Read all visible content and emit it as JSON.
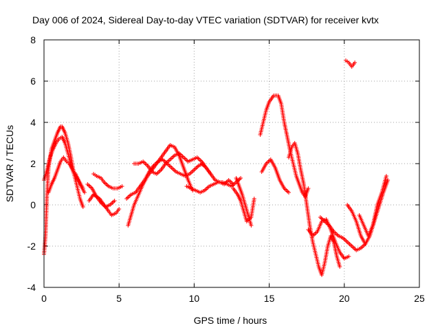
{
  "chart_data": {
    "type": "scatter",
    "title": "Day 006 of 2024, Sidereal Day-to-day VTEC variation (SDTVAR) for receiver kvtx",
    "xlabel": "GPS time / hours",
    "ylabel": "SDTVAR / TECUs",
    "xlim": [
      0,
      25
    ],
    "ylim": [
      -4,
      8
    ],
    "x_ticks": [
      0,
      5,
      10,
      15,
      20,
      25
    ],
    "y_ticks": [
      -4,
      -2,
      0,
      2,
      4,
      6,
      8
    ],
    "x_tick_labels": [
      "0",
      "5",
      "10",
      "15",
      "20",
      "25"
    ],
    "y_tick_labels": [
      "-4",
      "-2",
      "0",
      "2",
      "4",
      "6",
      "8"
    ],
    "grid": true,
    "marker": "+",
    "color": "#ff0000",
    "series": [
      {
        "name": "arc-a",
        "x": [
          0.0,
          0.1,
          0.2,
          0.3,
          0.5,
          0.7,
          0.9,
          1.1,
          1.2,
          1.4,
          1.6,
          1.8,
          2.0,
          2.2,
          2.4,
          2.6
        ],
        "y": [
          -2.4,
          -1.5,
          0.5,
          1.8,
          2.7,
          3.1,
          3.5,
          3.8,
          3.8,
          3.5,
          3.0,
          2.3,
          1.5,
          0.9,
          0.3,
          -0.1
        ]
      },
      {
        "name": "arc-b",
        "x": [
          0.0,
          0.2,
          0.4,
          0.6,
          0.8,
          1.0,
          1.2,
          1.4,
          1.6,
          1.8,
          2.0,
          2.2,
          2.4,
          2.7
        ],
        "y": [
          1.2,
          1.7,
          2.3,
          2.7,
          3.0,
          3.2,
          3.3,
          3.0,
          2.5,
          1.9,
          1.5,
          1.3,
          1.0,
          0.6
        ]
      },
      {
        "name": "arc-c",
        "x": [
          0.3,
          0.5,
          0.7,
          0.9,
          1.1,
          1.3,
          1.5,
          1.7,
          1.9,
          2.1,
          2.3,
          2.6
        ],
        "y": [
          0.6,
          1.0,
          1.3,
          1.7,
          2.1,
          2.3,
          2.1,
          2.0,
          1.7,
          1.5,
          1.2,
          0.8
        ]
      },
      {
        "name": "arc-d",
        "x": [
          3.3,
          3.5,
          3.8,
          4.0,
          4.3,
          4.6,
          4.9,
          5.2
        ],
        "y": [
          1.5,
          1.4,
          1.3,
          1.1,
          0.9,
          0.8,
          0.8,
          0.9
        ]
      },
      {
        "name": "arc-e",
        "x": [
          3.0,
          3.3,
          3.7,
          4.0,
          4.3,
          4.5,
          4.8,
          5.0
        ],
        "y": [
          0.2,
          0.5,
          0.3,
          0.0,
          -0.3,
          -0.5,
          -0.4,
          -0.2
        ]
      },
      {
        "name": "arc-f",
        "x": [
          2.9,
          3.2,
          3.5,
          3.8,
          4.1,
          4.4,
          4.7
        ],
        "y": [
          1.0,
          0.8,
          0.4,
          0.1,
          -0.1,
          0.0,
          0.2
        ]
      },
      {
        "name": "arc-g",
        "x": [
          5.6,
          5.8,
          6.0,
          6.3,
          6.6,
          6.9,
          7.2,
          7.5,
          7.8,
          8.1,
          8.4,
          8.7,
          9.0,
          9.3,
          9.6,
          9.9
        ],
        "y": [
          -1.0,
          -0.5,
          0.0,
          0.5,
          1.0,
          1.4,
          1.7,
          2.0,
          2.3,
          2.6,
          2.9,
          2.8,
          2.4,
          1.8,
          1.2,
          0.7
        ]
      },
      {
        "name": "arc-h",
        "x": [
          5.5,
          5.8,
          6.1,
          6.4,
          6.7,
          7.0,
          7.3,
          7.6,
          7.9,
          8.2,
          8.5,
          8.8,
          9.1,
          9.4,
          9.7,
          10.0,
          10.3,
          10.6
        ],
        "y": [
          0.3,
          0.5,
          0.6,
          0.9,
          1.2,
          1.6,
          1.9,
          2.1,
          2.2,
          2.0,
          1.8,
          1.6,
          1.5,
          1.4,
          1.5,
          1.7,
          1.9,
          2.0
        ]
      },
      {
        "name": "arc-i",
        "x": [
          6.0,
          6.3,
          6.6,
          6.9,
          7.2,
          7.5,
          7.8,
          8.1,
          8.4,
          8.7,
          9.0,
          9.3,
          9.6,
          9.9,
          10.2,
          10.5,
          10.8,
          11.1
        ],
        "y": [
          2.0,
          2.0,
          2.1,
          1.9,
          1.6,
          1.5,
          1.7,
          2.0,
          2.2,
          2.4,
          2.5,
          2.3,
          2.1,
          2.2,
          2.3,
          2.1,
          1.8,
          1.5
        ]
      },
      {
        "name": "arc-j",
        "x": [
          9.5,
          9.8,
          10.1,
          10.4,
          10.7,
          11.0,
          11.3,
          11.6,
          11.9,
          12.2,
          12.5,
          12.8,
          13.1
        ],
        "y": [
          0.9,
          0.8,
          0.7,
          0.6,
          0.7,
          0.9,
          1.0,
          1.1,
          1.1,
          1.0,
          0.9,
          1.1,
          1.3
        ]
      },
      {
        "name": "arc-k",
        "x": [
          10.5,
          10.8,
          11.1,
          11.4,
          11.7,
          12.0,
          12.3,
          12.6
        ],
        "y": [
          2.0,
          1.8,
          1.5,
          1.2,
          1.1,
          1.0,
          1.2,
          1.0
        ]
      },
      {
        "name": "arc-l",
        "x": [
          12.6,
          12.9,
          13.1,
          13.3,
          13.5,
          13.8,
          14.0
        ],
        "y": [
          0.8,
          0.5,
          0.2,
          -0.3,
          -0.8,
          -0.6,
          0.3
        ]
      },
      {
        "name": "arc-m",
        "x": [
          12.8,
          13.0,
          13.2,
          13.4,
          13.6,
          13.8
        ],
        "y": [
          1.3,
          0.9,
          0.5,
          0.0,
          -0.5,
          -1.0
        ]
      },
      {
        "name": "arc-n",
        "x": [
          14.4,
          14.6,
          14.8,
          15.0,
          15.3,
          15.6,
          15.8,
          16.0,
          16.2,
          16.4,
          16.6,
          16.8,
          17.0,
          17.2,
          17.4,
          17.6
        ],
        "y": [
          3.4,
          4.0,
          4.6,
          5.0,
          5.3,
          5.3,
          4.9,
          4.0,
          3.3,
          2.6,
          2.0,
          1.4,
          1.0,
          0.6,
          0.4,
          0.8
        ]
      },
      {
        "name": "arc-o",
        "x": [
          14.5,
          14.8,
          15.1,
          15.4,
          15.7,
          16.0,
          16.3
        ],
        "y": [
          1.6,
          2.0,
          2.2,
          1.8,
          1.2,
          0.8,
          0.6
        ]
      },
      {
        "name": "arc-p",
        "x": [
          16.3,
          16.5,
          16.7,
          16.9,
          17.1,
          17.3,
          17.5,
          17.7,
          17.9,
          18.1,
          18.3,
          18.5,
          18.7,
          18.9,
          19.1,
          19.3,
          19.5,
          19.7
        ],
        "y": [
          2.3,
          2.8,
          3.0,
          2.5,
          1.7,
          1.0,
          0.0,
          -1.0,
          -1.8,
          -2.4,
          -3.0,
          -3.4,
          -2.8,
          -2.0,
          -1.5,
          -1.8,
          -2.5,
          -3.0
        ]
      },
      {
        "name": "arc-q",
        "x": [
          17.6,
          17.9,
          18.2,
          18.5,
          18.8,
          19.1,
          19.4,
          19.7,
          20.0,
          20.3
        ],
        "y": [
          -1.2,
          -1.5,
          -1.3,
          -0.8,
          -0.7,
          -1.2,
          -1.8,
          -2.3,
          -2.6,
          -2.5
        ]
      },
      {
        "name": "arc-r",
        "x": [
          18.4,
          18.7,
          19.0,
          19.3,
          19.6,
          19.9,
          20.2,
          20.5,
          20.8,
          21.1,
          21.4
        ],
        "y": [
          -0.6,
          -0.8,
          -1.0,
          -1.3,
          -1.5,
          -1.6,
          -1.8,
          -2.0,
          -2.2,
          -2.1,
          -1.9
        ]
      },
      {
        "name": "arc-s",
        "x": [
          20.2,
          20.5,
          20.8,
          21.1,
          21.4,
          21.7,
          22.0,
          22.3,
          22.6,
          22.9
        ],
        "y": [
          0.0,
          -0.3,
          -0.8,
          -1.5,
          -1.9,
          -1.5,
          -0.8,
          -0.1,
          0.6,
          1.2
        ]
      },
      {
        "name": "arc-t",
        "x": [
          21.0,
          21.3,
          21.6,
          21.9,
          22.2,
          22.5,
          22.8
        ],
        "y": [
          -0.5,
          -1.0,
          -1.5,
          -1.0,
          0.0,
          0.6,
          1.4
        ]
      },
      {
        "name": "arc-u",
        "x": [
          20.1,
          20.3,
          20.5,
          20.7
        ],
        "y": [
          7.0,
          6.9,
          6.7,
          6.9
        ]
      }
    ]
  }
}
